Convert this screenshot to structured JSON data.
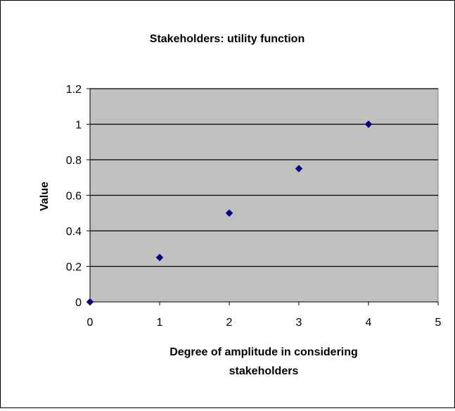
{
  "chart_data": {
    "type": "scatter",
    "title": "Stakeholders: utility function",
    "xlabel_lines": [
      "Degree of amplitude in considering",
      "stakeholders"
    ],
    "ylabel": "Value",
    "xlim": [
      0,
      5
    ],
    "ylim": [
      0,
      1.2
    ],
    "x_ticks": [
      "0",
      "1",
      "2",
      "3",
      "4",
      "5"
    ],
    "y_ticks": [
      "0",
      "0.2",
      "0.4",
      "0.6",
      "0.8",
      "1",
      "1.2"
    ],
    "grid": true,
    "legend": "none",
    "series": [
      {
        "marker": "diamond",
        "points": [
          {
            "x": 0,
            "y": 0
          },
          {
            "x": 1,
            "y": 0.25
          },
          {
            "x": 2,
            "y": 0.5
          },
          {
            "x": 3,
            "y": 0.75
          },
          {
            "x": 4,
            "y": 1
          }
        ]
      }
    ],
    "colors": {
      "plot_area": "#c0c0c0",
      "marker": "#000080",
      "gridline": "#000000"
    }
  }
}
